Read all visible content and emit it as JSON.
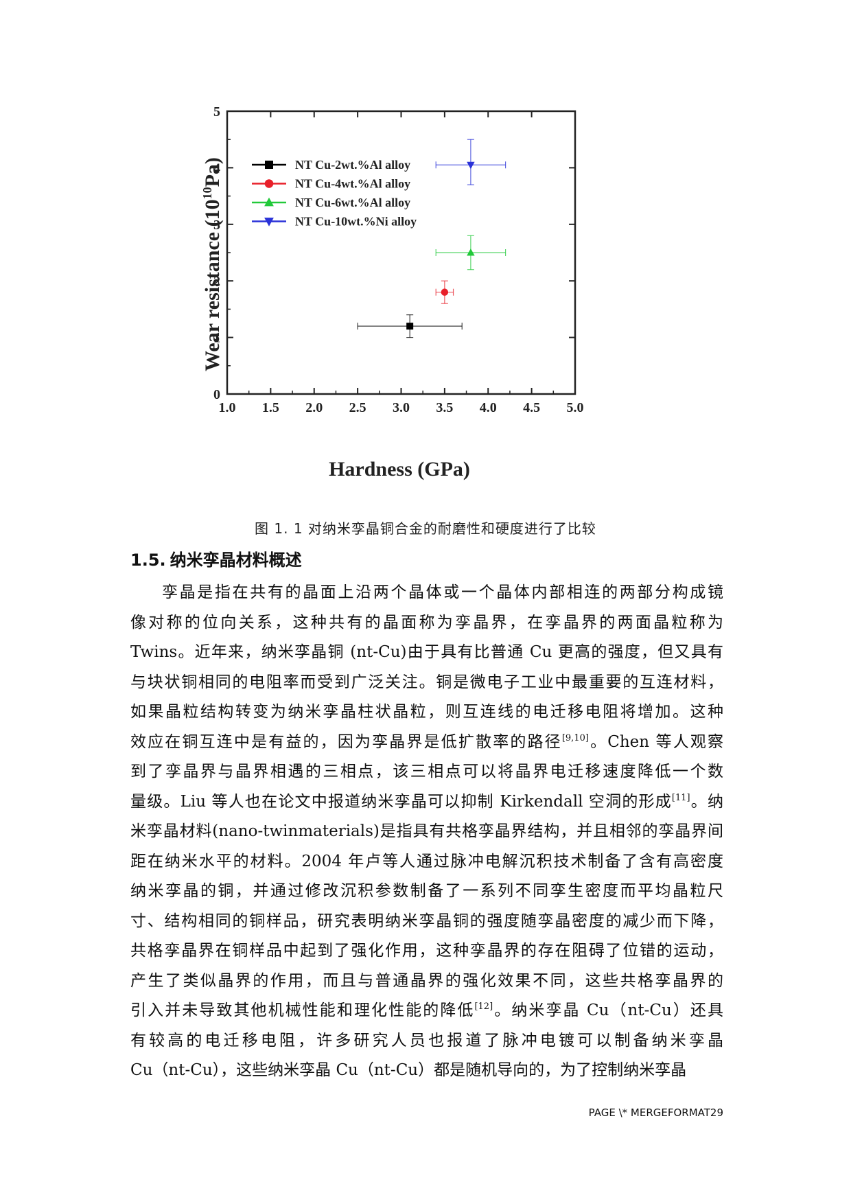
{
  "figure": {
    "caption": "图 1. 1  对纳米孪晶铜合金的耐磨性和硬度进行了比较",
    "chart_data": {
      "type": "scatter",
      "xlabel": "Hardness (GPa)",
      "ylabel_main": "Wear resistance (10",
      "ylabel_sup": "10",
      "ylabel_end": "Pa)",
      "xlim": [
        1.0,
        5.0
      ],
      "ylim": [
        0,
        5
      ],
      "x_ticks": [
        "1.0",
        "1.5",
        "2.0",
        "2.5",
        "3.0",
        "3.5",
        "4.0",
        "4.5",
        "5.0"
      ],
      "y_ticks": [
        "0",
        "1",
        "2",
        "3",
        "4",
        "5"
      ],
      "legend_position": "top-left",
      "grid": false,
      "series": [
        {
          "name": "NT Cu-2wt.%Al alloy",
          "color": "#000000",
          "marker": "square",
          "x": 3.1,
          "y": 1.2,
          "xerr": [
            2.5,
            3.7
          ],
          "yerr": [
            1.0,
            1.4
          ]
        },
        {
          "name": "NT Cu-4wt.%Al alloy",
          "color": "#e8202a",
          "marker": "circle",
          "x": 3.5,
          "y": 1.8,
          "xerr": [
            3.4,
            3.6
          ],
          "yerr": [
            1.6,
            2.0
          ]
        },
        {
          "name": "NT Cu-6wt.%Al alloy",
          "color": "#22c93a",
          "marker": "triangle-up",
          "x": 3.8,
          "y": 2.5,
          "xerr": [
            3.4,
            4.2
          ],
          "yerr": [
            2.2,
            2.8
          ]
        },
        {
          "name": "NT Cu-10wt.%Ni alloy",
          "color": "#2a32d8",
          "marker": "triangle-down",
          "x": 3.8,
          "y": 4.05,
          "xerr": [
            3.4,
            4.2
          ],
          "yerr": [
            3.7,
            4.5
          ]
        }
      ]
    }
  },
  "section": {
    "number": "1.5.",
    "title": "纳米孪晶材料概述"
  },
  "body": {
    "l1": "孪晶是指在共有的晶面上沿两个晶体或一个晶体内部相连的两部分构成镜",
    "l2": "像对称的位向关系，这种共有的晶面称为孪晶界，在孪晶界的两面晶粒称为",
    "l3": "Twins。近年来，纳米孪晶铜 (nt-Cu)由于具有比普通 Cu 更高的强度，但又具有",
    "l4": "与块状铜相同的电阻率而受到广泛关注。铜是微电子工业中最重要的互连材料，",
    "l5": "如果晶粒结构转变为纳米孪晶柱状晶粒，则互连线的电迁移电阻将增加。这种",
    "l6a": "效应在铜互连中是有益的，因为孪晶界是低扩散率的路径",
    "l6ref": "[9,10]",
    "l6b": "。Chen 等人观察",
    "l7": "到了孪晶界与晶界相遇的三相点，该三相点可以将晶界电迁移速度降低一个数",
    "l8a": "量级。Liu 等人也在论文中报道纳米孪晶可以抑制 Kirkendall 空洞的形成",
    "l8ref": "[11]",
    "l8b": "。纳",
    "l9": "米孪晶材料(nano-twinmaterials)是指具有共格孪晶界结构，并且相邻的孪晶界间",
    "l10": "距在纳米水平的材料。2004 年卢等人通过脉冲电解沉积技术制备了含有高密度",
    "l11": "纳米孪晶的铜，并通过修改沉积参数制备了一系列不同孪生密度而平均晶粒尺",
    "l12": "寸、结构相同的铜样品，研究表明纳米孪晶铜的强度随孪晶密度的减少而下降，",
    "l13": "共格孪晶界在铜样品中起到了强化作用，这种孪晶界的存在阻碍了位错的运动，",
    "l14": "产生了类似晶界的作用，而且与普通晶界的强化效果不同，这些共格孪晶界的",
    "l15a": "引入并未导致其他机械性能和理化性能的降低",
    "l15ref": "[12]",
    "l15b": "。纳米孪晶 Cu（nt-Cu）还具",
    "l16": "有较高的电迁移电阻，许多研究人员也报道了脉冲电镀可以制备纳米孪晶",
    "l17": "Cu（nt-Cu），这些纳米孪晶 Cu（nt-Cu）都是随机导向的，为了控制纳米孪晶"
  },
  "footer": {
    "text": "PAGE  \\* MERGEFORMAT29"
  }
}
